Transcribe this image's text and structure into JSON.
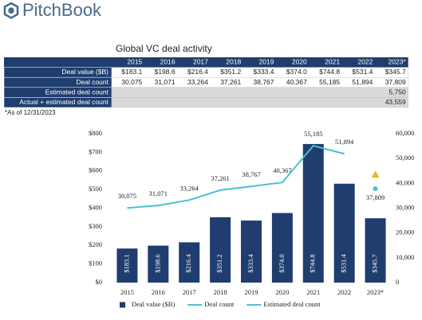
{
  "logo": "PitchBook",
  "table": {
    "title": "Global VC deal activity",
    "header": [
      "2015",
      "2016",
      "2017",
      "2018",
      "2019",
      "2020",
      "2021",
      "2022",
      "2023*"
    ],
    "rows": [
      {
        "label": "Deal value ($B)",
        "cells": [
          "$183.1",
          "$198.6",
          "$216.4",
          "$351.2",
          "$333.4",
          "$374.0",
          "$744.8",
          "$531.4",
          "$345.7"
        ]
      },
      {
        "label": "Deal count",
        "cells": [
          "30,075",
          "31,071",
          "33,264",
          "37,261",
          "38,767",
          "40,367",
          "55,185",
          "51,894",
          "37,809"
        ]
      },
      {
        "label": "Estimated deal count",
        "cells": [
          null,
          null,
          null,
          null,
          null,
          null,
          null,
          null,
          "5,750"
        ]
      },
      {
        "label": "Actual + estimated deal count",
        "cells": [
          null,
          null,
          null,
          null,
          null,
          null,
          null,
          null,
          "43,559"
        ]
      }
    ],
    "footnote": "*As of 12/31/2023"
  },
  "chart_data": {
    "type": "bar-line",
    "categories": [
      "2015",
      "2016",
      "2017",
      "2018",
      "2019",
      "2020",
      "2021",
      "2022",
      "2023*"
    ],
    "series": [
      {
        "name": "Deal value ($B)",
        "type": "bar",
        "color": "#1f3d6e",
        "values": [
          183.1,
          198.6,
          216.4,
          351.2,
          333.4,
          374.0,
          744.8,
          531.4,
          345.7
        ],
        "value_labels": [
          "$183.1",
          "$198.6",
          "$216.4",
          "$351.2",
          "$333.4",
          "$374.0",
          "$744.8",
          "$531.4",
          "$345.7"
        ]
      },
      {
        "name": "Deal count",
        "type": "line",
        "axis": "y2",
        "color": "#4dbfcf",
        "values": [
          30075,
          31071,
          33264,
          37261,
          38767,
          40367,
          55185,
          51894,
          null
        ],
        "value_labels": [
          "30,075",
          "31,071",
          "33,264",
          "37,261",
          "38,767",
          "40,367",
          "55,185",
          "51,894",
          null
        ]
      },
      {
        "name": "Estimated deal count",
        "type": "point",
        "axis": "y2",
        "color": "#4dbfcf",
        "values": [
          null,
          null,
          null,
          null,
          null,
          null,
          null,
          null,
          37809
        ],
        "value_labels": [
          null,
          null,
          null,
          null,
          null,
          null,
          null,
          null,
          "37,809"
        ]
      }
    ],
    "estimate_marker": {
      "value": 43559,
      "color": "#e8b923"
    },
    "ylim": [
      0,
      800
    ],
    "yticks": [
      {
        "value": 0,
        "label": "$0"
      },
      {
        "value": 100,
        "label": "$100"
      },
      {
        "value": 200,
        "label": "$200"
      },
      {
        "value": 300,
        "label": "$300"
      },
      {
        "value": 400,
        "label": "$400"
      },
      {
        "value": 500,
        "label": "$500"
      },
      {
        "value": 600,
        "label": "$600"
      },
      {
        "value": 700,
        "label": "$700"
      },
      {
        "value": 800,
        "label": "$800"
      }
    ],
    "y2lim": [
      0,
      60000
    ],
    "y2ticks": [
      0,
      {
        "value": 10000,
        "label": "10,000"
      },
      {
        "value": 20000,
        "label": "20,000"
      },
      {
        "value": 30000,
        "label": "30,000"
      },
      {
        "value": 40000,
        "label": "40,000"
      },
      {
        "value": 50000,
        "label": "50,000"
      },
      {
        "value": 60000,
        "label": "60,000"
      }
    ],
    "grid": false
  }
}
